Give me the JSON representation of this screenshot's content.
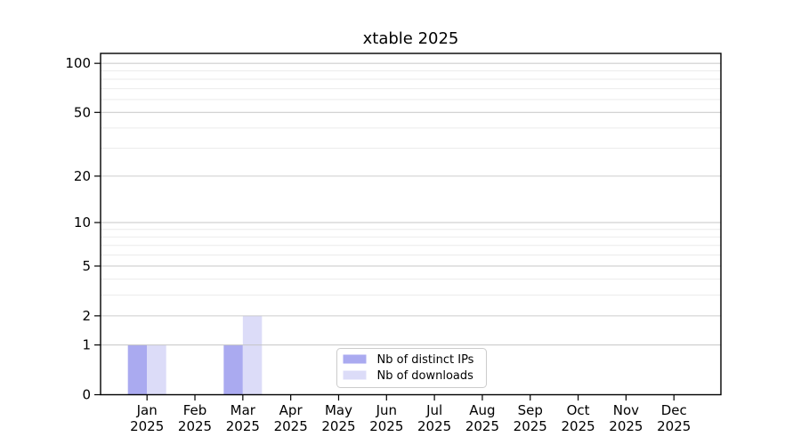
{
  "chart_data": {
    "type": "bar",
    "title": "xtable 2025",
    "x": {
      "months": [
        "Jan",
        "Feb",
        "Mar",
        "Apr",
        "May",
        "Jun",
        "Jul",
        "Aug",
        "Sep",
        "Oct",
        "Nov",
        "Dec"
      ],
      "year": "2025"
    },
    "series": [
      {
        "name": "Nb of distinct IPs",
        "color": "#aaaaf0",
        "values": [
          1,
          0,
          1,
          0,
          0,
          0,
          0,
          0,
          0,
          0,
          0,
          0
        ]
      },
      {
        "name": "Nb of downloads",
        "color": "#dcdcf8",
        "values": [
          1,
          0,
          2,
          0,
          0,
          0,
          0,
          0,
          0,
          0,
          0,
          0
        ]
      }
    ],
    "yscale": "log1p",
    "yticks": [
      0,
      1,
      2,
      5,
      10,
      20,
      50,
      100
    ],
    "minor_gridlines": [
      3,
      4,
      6,
      7,
      8,
      9,
      30,
      40,
      60,
      70,
      80,
      90
    ],
    "ylim": [
      0,
      115
    ],
    "grid": "on",
    "legend": {
      "position": "bottom-center"
    },
    "colors": {
      "axis": "#000000",
      "major_grid": "#c4c4c4",
      "minor_grid": "#ebebeb",
      "text": "#000000",
      "legend_border": "#cccccc",
      "background": "#ffffff"
    }
  }
}
